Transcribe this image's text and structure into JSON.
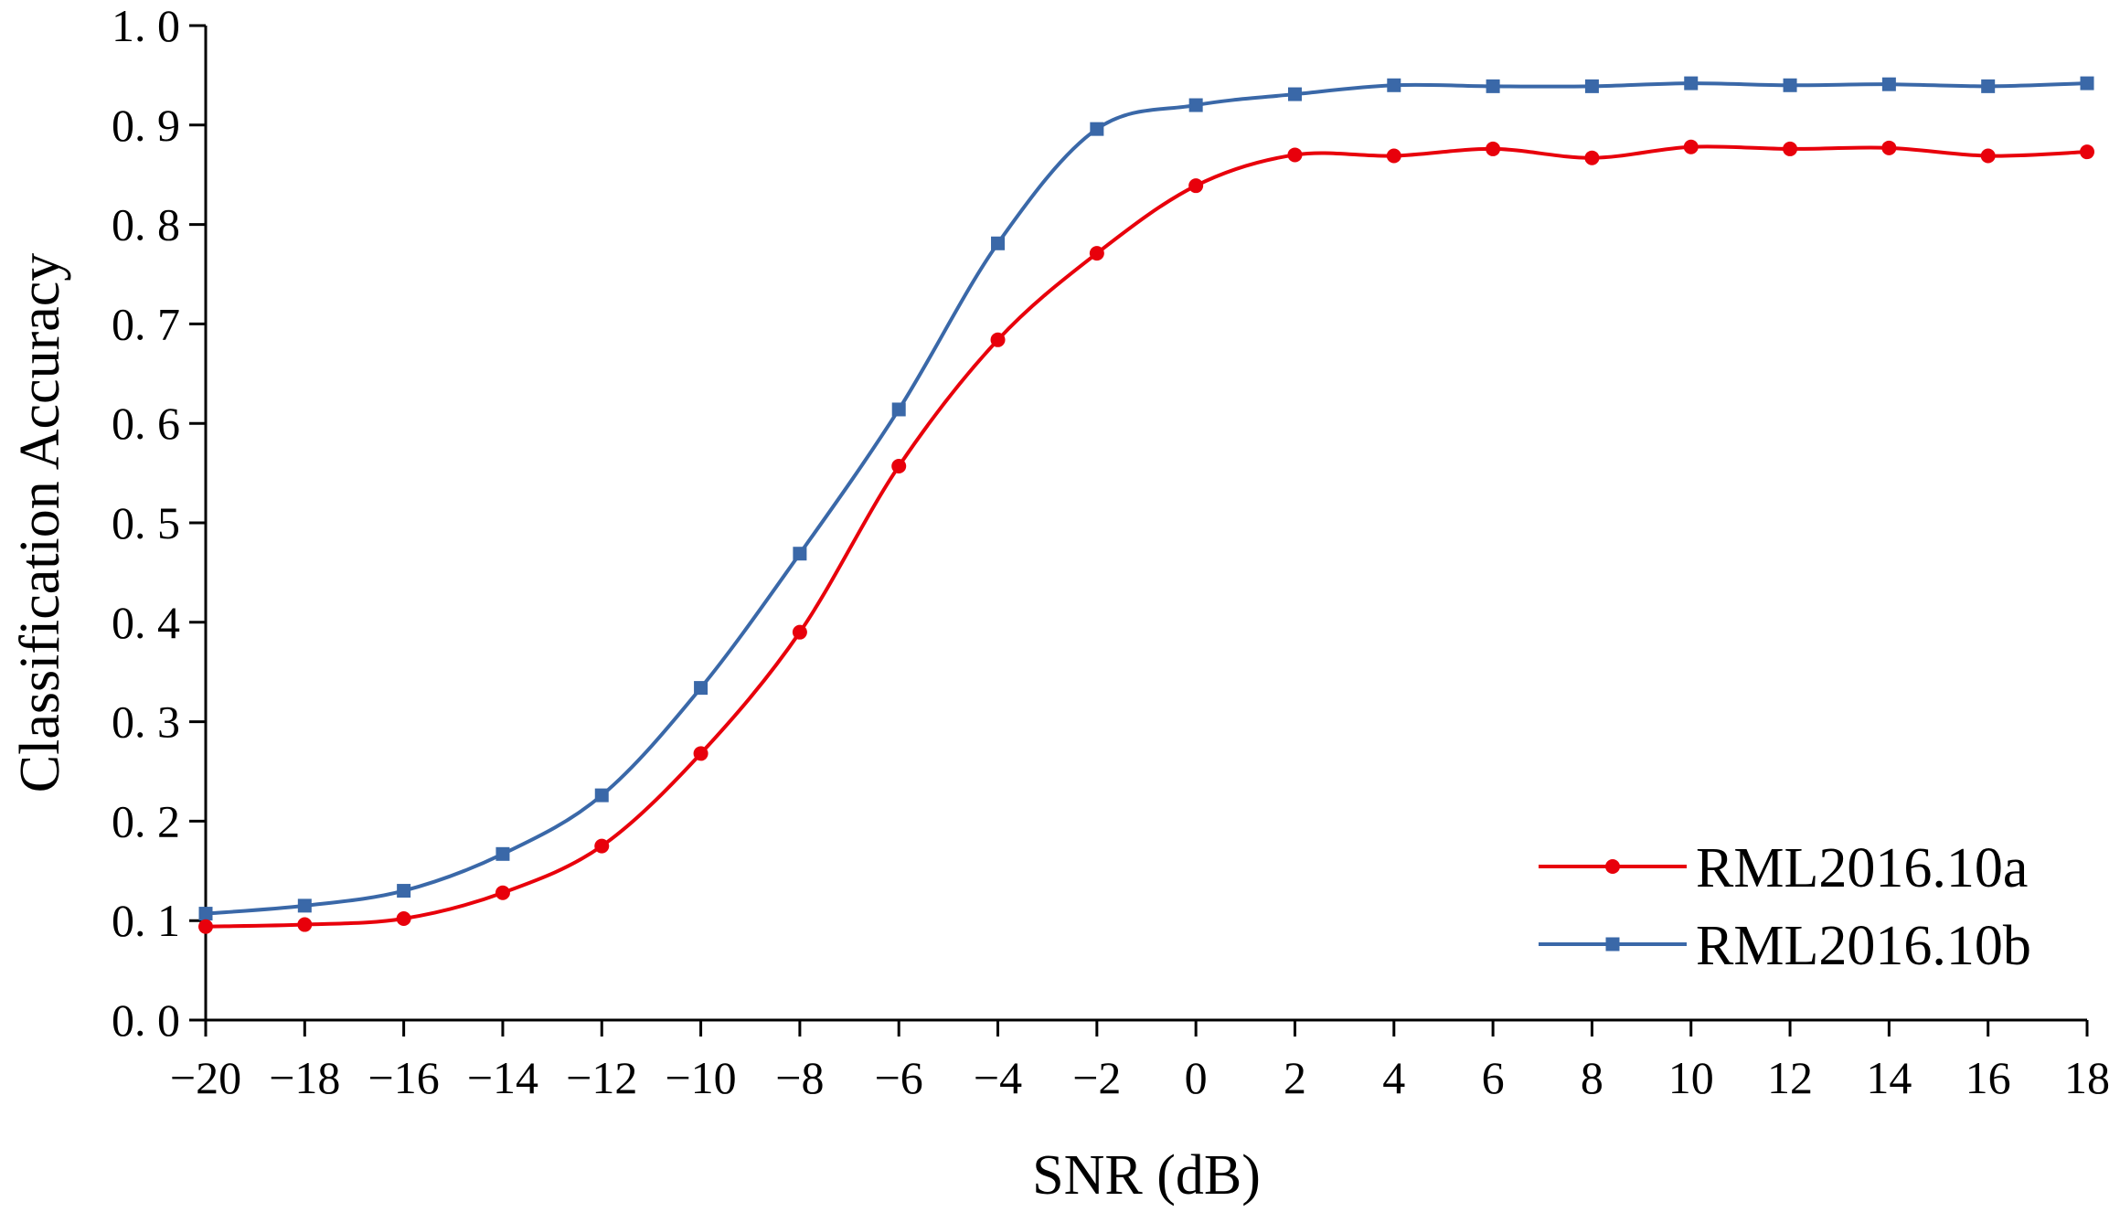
{
  "chart_data": {
    "type": "line",
    "title": "",
    "xlabel": "SNR (dB)",
    "ylabel": "Classification Accuracy",
    "x": [
      -20,
      -18,
      -16,
      -14,
      -12,
      -10,
      -8,
      -6,
      -4,
      -2,
      0,
      2,
      4,
      6,
      8,
      10,
      12,
      14,
      16,
      18
    ],
    "xticks": [
      "−20",
      "−18",
      "−16",
      "−14",
      "−12",
      "−10",
      "−8",
      "−6",
      "−4",
      "−2",
      "0",
      "2",
      "4",
      "6",
      "8",
      "10",
      "12",
      "14",
      "16",
      "18"
    ],
    "yticks": [
      "0. 0",
      "0. 1",
      "0. 2",
      "0. 3",
      "0. 4",
      "0. 5",
      "0. 6",
      "0. 7",
      "0. 8",
      "0. 9",
      "1. 0"
    ],
    "xlim": [
      -20,
      18
    ],
    "ylim": [
      0.0,
      1.0
    ],
    "grid": false,
    "legend_position": "bottom-right",
    "series": [
      {
        "name": "RML2016.10a",
        "color": "#e8000b",
        "marker": "circle",
        "values": [
          0.094,
          0.096,
          0.102,
          0.128,
          0.175,
          0.268,
          0.39,
          0.557,
          0.684,
          0.771,
          0.839,
          0.87,
          0.869,
          0.876,
          0.867,
          0.878,
          0.876,
          0.877,
          0.869,
          0.873
        ]
      },
      {
        "name": "RML2016.10b",
        "color": "#3a68a8",
        "marker": "square",
        "values": [
          0.107,
          0.115,
          0.13,
          0.167,
          0.226,
          0.334,
          0.469,
          0.614,
          0.781,
          0.896,
          0.92,
          0.931,
          0.94,
          0.939,
          0.939,
          0.942,
          0.94,
          0.941,
          0.939,
          0.942
        ]
      }
    ]
  }
}
